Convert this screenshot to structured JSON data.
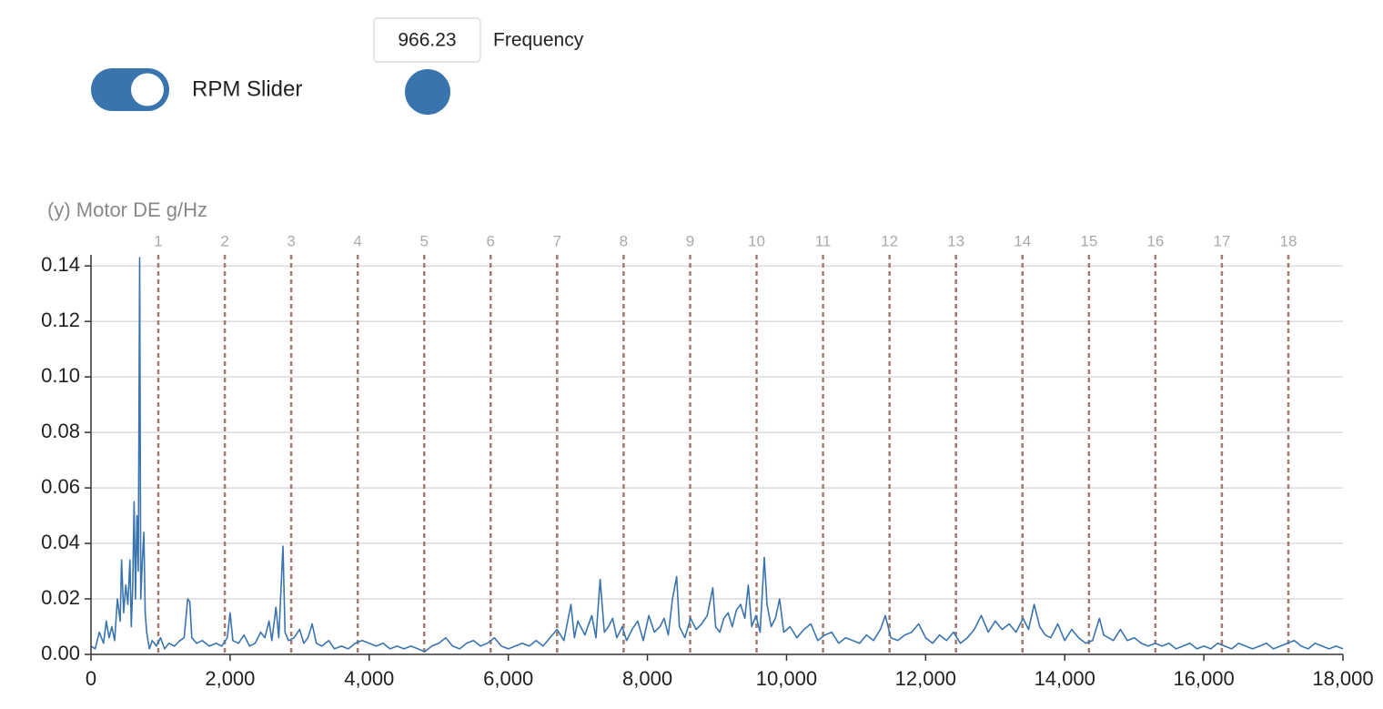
{
  "controls": {
    "toggle_label": "RPM Slider",
    "frequency_value": 966.23,
    "frequency_label": "Frequency"
  },
  "chart_data": {
    "type": "line",
    "y_label": "(y) Motor DE g/Hz",
    "xlim": [
      0,
      18000
    ],
    "ylim": [
      0,
      0.144
    ],
    "xticks": [
      0,
      {
        "value": 2000,
        "label": "2,000"
      },
      {
        "value": 4000,
        "label": "4,000"
      },
      {
        "value": 6000,
        "label": "6,000"
      },
      {
        "value": 8000,
        "label": "8,000"
      },
      {
        "value": 10000,
        "label": "10,000"
      },
      {
        "value": 12000,
        "label": "12,000"
      },
      {
        "value": 14000,
        "label": "14,000"
      },
      {
        "value": 16000,
        "label": "16,000"
      },
      {
        "value": 18000,
        "label": "18,000"
      }
    ],
    "yticks": [
      {
        "value": 0,
        "label": "0.00"
      },
      {
        "value": 0.02,
        "label": "0.02"
      },
      {
        "value": 0.04,
        "label": "0.04"
      },
      {
        "value": 0.06,
        "label": "0.06"
      },
      {
        "value": 0.08,
        "label": "0.08"
      },
      {
        "value": 0.1,
        "label": "0.10"
      },
      {
        "value": 0.12,
        "label": "0.12"
      },
      {
        "value": 0.14,
        "label": "0.14"
      }
    ],
    "grid": true,
    "harmonics": {
      "color": "#a37a70",
      "labels": [
        1,
        2,
        3,
        4,
        5,
        6,
        7,
        8,
        9,
        10,
        11,
        12,
        13,
        14,
        15,
        16,
        17,
        18
      ],
      "x": [
        968,
        1924,
        2879,
        3835,
        4791,
        5746,
        6702,
        7658,
        8614,
        9569,
        10525,
        11481,
        12436,
        13392,
        14348,
        15303,
        16259,
        17215
      ]
    },
    "series": [
      {
        "color": "#3a74ae",
        "x": [
          0,
          60,
          120,
          180,
          220,
          260,
          300,
          340,
          380,
          420,
          440,
          470,
          500,
          530,
          560,
          580,
          600,
          620,
          640,
          660,
          680,
          700,
          715,
          740,
          760,
          780,
          800,
          840,
          880,
          940,
          1000,
          1060,
          1120,
          1200,
          1280,
          1340,
          1390,
          1420,
          1450,
          1520,
          1600,
          1700,
          1800,
          1880,
          1960,
          2000,
          2040,
          2120,
          2200,
          2280,
          2360,
          2440,
          2500,
          2560,
          2600,
          2660,
          2700,
          2760,
          2790,
          2840,
          2920,
          3000,
          3060,
          3120,
          3180,
          3240,
          3320,
          3420,
          3500,
          3600,
          3700,
          3800,
          3900,
          4000,
          4100,
          4200,
          4300,
          4400,
          4500,
          4600,
          4700,
          4800,
          4900,
          5000,
          5100,
          5200,
          5300,
          5400,
          5500,
          5600,
          5700,
          5800,
          5900,
          6000,
          6100,
          6200,
          6300,
          6400,
          6500,
          6600,
          6700,
          6800,
          6900,
          6950,
          7000,
          7100,
          7200,
          7260,
          7320,
          7380,
          7440,
          7500,
          7560,
          7640,
          7700,
          7780,
          7860,
          7940,
          8020,
          8100,
          8180,
          8240,
          8300,
          8360,
          8420,
          8460,
          8540,
          8620,
          8700,
          8780,
          8860,
          8940,
          8980,
          9040,
          9100,
          9160,
          9220,
          9280,
          9340,
          9400,
          9450,
          9500,
          9560,
          9620,
          9680,
          9720,
          9780,
          9840,
          9900,
          9960,
          10050,
          10150,
          10250,
          10350,
          10450,
          10550,
          10650,
          10750,
          10850,
          10950,
          11050,
          11150,
          11250,
          11350,
          11420,
          11500,
          11600,
          11700,
          11800,
          11900,
          12000,
          12100,
          12200,
          12300,
          12400,
          12500,
          12600,
          12700,
          12800,
          12900,
          13000,
          13100,
          13200,
          13300,
          13400,
          13480,
          13560,
          13640,
          13720,
          13800,
          13900,
          14000,
          14100,
          14200,
          14300,
          14400,
          14500,
          14560,
          14700,
          14800,
          14900,
          15000,
          15100,
          15200,
          15300,
          15400,
          15500,
          15600,
          15700,
          15800,
          15900,
          16000,
          16100,
          16200,
          16300,
          16400,
          16500,
          16600,
          16700,
          16800,
          16900,
          17000,
          17100,
          17200,
          17300,
          17400,
          17500,
          17600,
          17700,
          17800,
          17900,
          18000
        ],
        "values": [
          0.003,
          0.002,
          0.008,
          0.004,
          0.012,
          0.006,
          0.01,
          0.005,
          0.02,
          0.012,
          0.034,
          0.015,
          0.025,
          0.018,
          0.034,
          0.01,
          0.025,
          0.055,
          0.02,
          0.05,
          0.03,
          0.143,
          0.02,
          0.035,
          0.044,
          0.015,
          0.008,
          0.002,
          0.005,
          0.003,
          0.006,
          0.002,
          0.004,
          0.003,
          0.005,
          0.006,
          0.02,
          0.019,
          0.006,
          0.004,
          0.005,
          0.003,
          0.004,
          0.003,
          0.006,
          0.015,
          0.005,
          0.004,
          0.007,
          0.003,
          0.004,
          0.008,
          0.006,
          0.012,
          0.005,
          0.017,
          0.006,
          0.039,
          0.008,
          0.005,
          0.006,
          0.009,
          0.004,
          0.006,
          0.011,
          0.004,
          0.003,
          0.005,
          0.002,
          0.003,
          0.002,
          0.004,
          0.005,
          0.004,
          0.003,
          0.004,
          0.002,
          0.003,
          0.002,
          0.003,
          0.002,
          0.001,
          0.003,
          0.004,
          0.006,
          0.003,
          0.002,
          0.004,
          0.005,
          0.003,
          0.004,
          0.006,
          0.003,
          0.002,
          0.003,
          0.004,
          0.003,
          0.005,
          0.003,
          0.006,
          0.009,
          0.005,
          0.018,
          0.006,
          0.012,
          0.007,
          0.014,
          0.006,
          0.027,
          0.008,
          0.01,
          0.013,
          0.006,
          0.01,
          0.005,
          0.009,
          0.012,
          0.005,
          0.014,
          0.008,
          0.01,
          0.013,
          0.007,
          0.02,
          0.028,
          0.01,
          0.006,
          0.013,
          0.009,
          0.011,
          0.014,
          0.024,
          0.01,
          0.008,
          0.013,
          0.015,
          0.01,
          0.016,
          0.018,
          0.013,
          0.025,
          0.01,
          0.014,
          0.008,
          0.035,
          0.018,
          0.01,
          0.013,
          0.02,
          0.008,
          0.01,
          0.006,
          0.009,
          0.011,
          0.005,
          0.007,
          0.008,
          0.004,
          0.006,
          0.005,
          0.004,
          0.007,
          0.005,
          0.009,
          0.014,
          0.006,
          0.005,
          0.007,
          0.008,
          0.011,
          0.006,
          0.004,
          0.007,
          0.005,
          0.008,
          0.004,
          0.006,
          0.009,
          0.014,
          0.008,
          0.012,
          0.009,
          0.011,
          0.008,
          0.013,
          0.009,
          0.018,
          0.01,
          0.007,
          0.006,
          0.011,
          0.005,
          0.009,
          0.006,
          0.004,
          0.005,
          0.013,
          0.007,
          0.005,
          0.009,
          0.005,
          0.006,
          0.004,
          0.003,
          0.004,
          0.003,
          0.004,
          0.002,
          0.003,
          0.004,
          0.002,
          0.003,
          0.002,
          0.004,
          0.003,
          0.002,
          0.004,
          0.003,
          0.002,
          0.003,
          0.004,
          0.002,
          0.003,
          0.004,
          0.005,
          0.003,
          0.002,
          0.004,
          0.003,
          0.002,
          0.003,
          0.002
        ]
      }
    ]
  }
}
